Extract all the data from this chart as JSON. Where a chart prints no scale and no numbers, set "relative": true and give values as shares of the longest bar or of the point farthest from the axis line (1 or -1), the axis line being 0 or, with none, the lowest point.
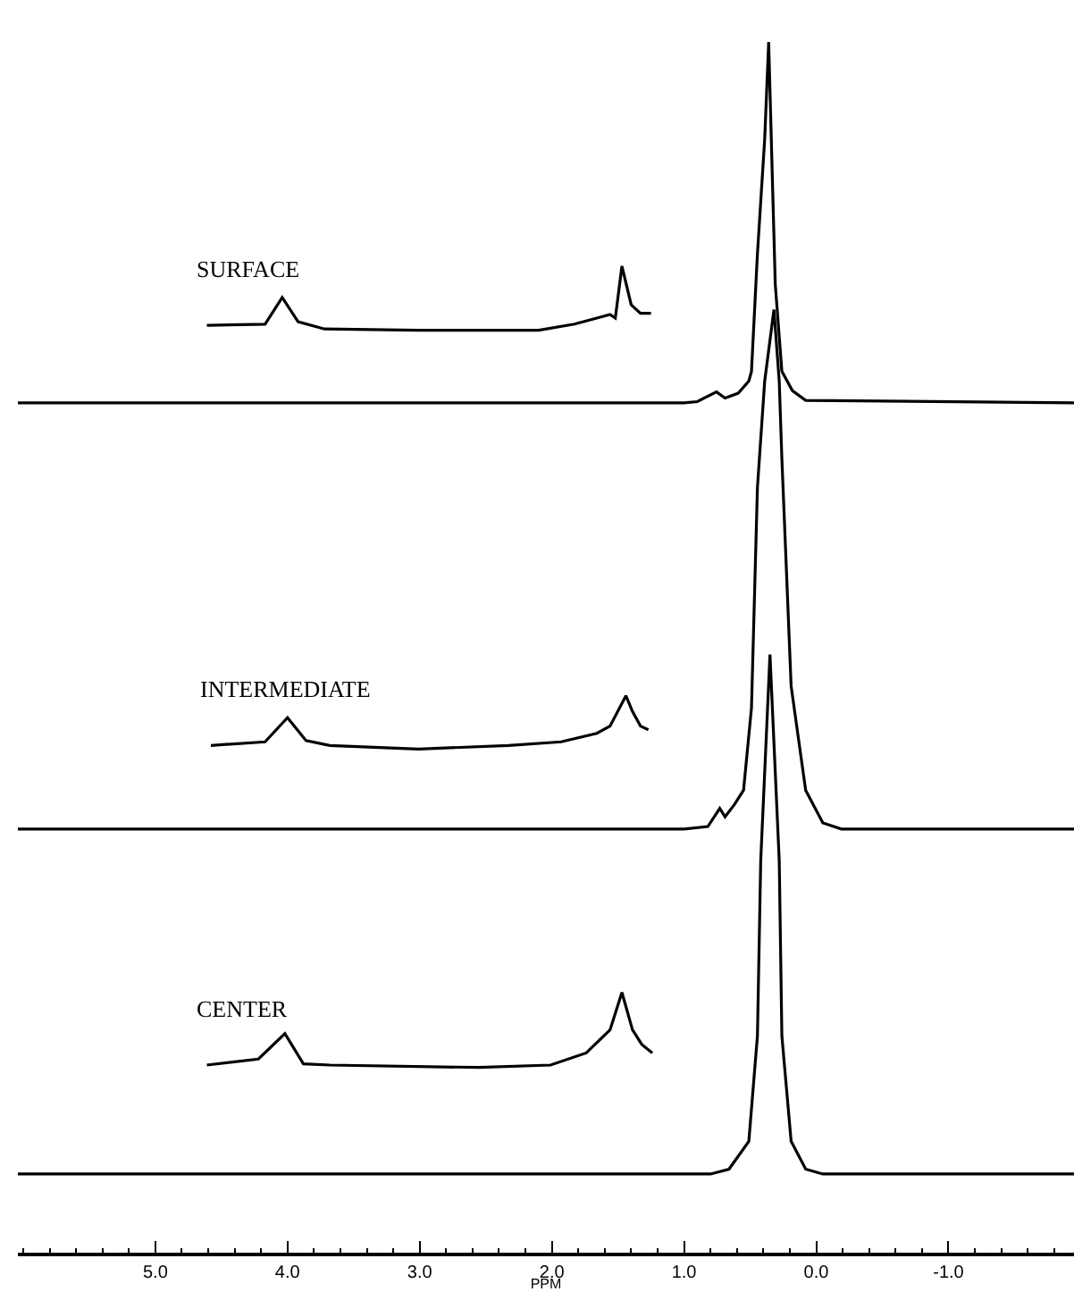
{
  "chart_data": {
    "type": "line",
    "relative": true,
    "xlabel": "PPM",
    "xlim": [
      6.04,
      -1.95
    ],
    "xticks": [
      {
        "value": 6.0,
        "label": null
      },
      {
        "value": 5.8,
        "label": null
      },
      {
        "value": 5.6,
        "label": null
      },
      {
        "value": 5.4,
        "label": null
      },
      {
        "value": 5.2,
        "label": null
      },
      {
        "value": 5.0,
        "label": "5.0"
      },
      {
        "value": 4.8,
        "label": null
      },
      {
        "value": 4.6,
        "label": null
      },
      {
        "value": 4.4,
        "label": null
      },
      {
        "value": 4.2,
        "label": null
      },
      {
        "value": 4.0,
        "label": "4.0"
      },
      {
        "value": 3.8,
        "label": null
      },
      {
        "value": 3.6,
        "label": null
      },
      {
        "value": 3.4,
        "label": null
      },
      {
        "value": 3.2,
        "label": null
      },
      {
        "value": 3.0,
        "label": "3.0"
      },
      {
        "value": 2.8,
        "label": null
      },
      {
        "value": 2.6,
        "label": null
      },
      {
        "value": 2.4,
        "label": null
      },
      {
        "value": 2.2,
        "label": null
      },
      {
        "value": 2.0,
        "label": "2.0"
      },
      {
        "value": 1.8,
        "label": null
      },
      {
        "value": 1.6,
        "label": null
      },
      {
        "value": 1.4,
        "label": null
      },
      {
        "value": 1.2,
        "label": null
      },
      {
        "value": 1.0,
        "label": "1.0"
      },
      {
        "value": 0.8,
        "label": null
      },
      {
        "value": 0.6,
        "label": null
      },
      {
        "value": 0.4,
        "label": null
      },
      {
        "value": 0.2,
        "label": null
      },
      {
        "value": 0.0,
        "label": "0.0"
      },
      {
        "value": -0.2,
        "label": null
      },
      {
        "value": -0.4,
        "label": null
      },
      {
        "value": -0.6,
        "label": null
      },
      {
        "value": -0.8,
        "label": null
      },
      {
        "value": -1.0,
        "label": "-1.0"
      },
      {
        "value": -1.2,
        "label": null
      },
      {
        "value": -1.4,
        "label": null
      },
      {
        "value": -1.6,
        "label": null
      },
      {
        "value": -1.8,
        "label": null
      }
    ],
    "legend": false,
    "marker": "none",
    "line_style": "solid",
    "tick_labels": "x",
    "series": [
      {
        "color": "#000000",
        "x": [
          6.04,
          1.0,
          0.9,
          0.755,
          0.69,
          0.59,
          0.51,
          0.49,
          0.445,
          0.39,
          0.36,
          0.34,
          0.31,
          0.26,
          0.18,
          0.08,
          -1.95
        ],
        "values": [
          0.702,
          0.702,
          0.703,
          0.711,
          0.706,
          0.71,
          0.72,
          0.728,
          0.825,
          0.92,
          1.0,
          0.92,
          0.8,
          0.728,
          0.712,
          0.704,
          0.702
        ]
      },
      {
        "name": "SURFACE",
        "color": "#000000",
        "x": [
          4.61,
          4.17,
          4.04,
          3.92,
          3.72,
          3.01,
          2.1,
          1.83,
          1.66,
          1.56,
          1.52,
          1.47,
          1.4,
          1.33,
          1.25
        ],
        "values": [
          0.766,
          0.767,
          0.789,
          0.769,
          0.763,
          0.762,
          0.762,
          0.767,
          0.772,
          0.775,
          0.772,
          0.815,
          0.783,
          0.776,
          0.776
        ]
      },
      {
        "color": "#000000",
        "x": [
          6.04,
          1.0,
          0.82,
          0.73,
          0.69,
          0.62,
          0.55,
          0.49,
          0.445,
          0.39,
          0.32,
          0.28,
          0.26,
          0.19,
          0.08,
          -0.05,
          -0.19,
          -1.95
        ],
        "values": [
          0.35,
          0.35,
          0.352,
          0.367,
          0.36,
          0.37,
          0.382,
          0.45,
          0.632,
          0.72,
          0.779,
          0.72,
          0.656,
          0.468,
          0.382,
          0.355,
          0.35,
          0.35
        ]
      },
      {
        "name": "INTERMEDIATE",
        "color": "#000000",
        "x": [
          4.58,
          4.17,
          4.0,
          3.86,
          3.68,
          3.01,
          2.33,
          1.93,
          1.66,
          1.56,
          1.44,
          1.39,
          1.33,
          1.27
        ],
        "values": [
          0.419,
          0.422,
          0.442,
          0.423,
          0.419,
          0.416,
          0.419,
          0.422,
          0.429,
          0.435,
          0.46,
          0.447,
          0.435,
          0.432
        ]
      },
      {
        "color": "#000000",
        "x": [
          6.04,
          0.8,
          0.66,
          0.51,
          0.445,
          0.42,
          0.35,
          0.28,
          0.26,
          0.19,
          0.08,
          -0.05,
          -1.95
        ],
        "values": [
          0.065,
          0.065,
          0.069,
          0.092,
          0.179,
          0.324,
          0.494,
          0.324,
          0.179,
          0.092,
          0.069,
          0.065,
          0.065
        ]
      },
      {
        "name": "CENTER",
        "color": "#000000",
        "x": [
          4.61,
          4.22,
          4.02,
          3.88,
          3.68,
          2.55,
          2.01,
          1.74,
          1.56,
          1.47,
          1.39,
          1.32,
          1.24
        ],
        "values": [
          0.155,
          0.16,
          0.181,
          0.156,
          0.155,
          0.153,
          0.155,
          0.165,
          0.184,
          0.215,
          0.184,
          0.172,
          0.165
        ]
      }
    ]
  }
}
